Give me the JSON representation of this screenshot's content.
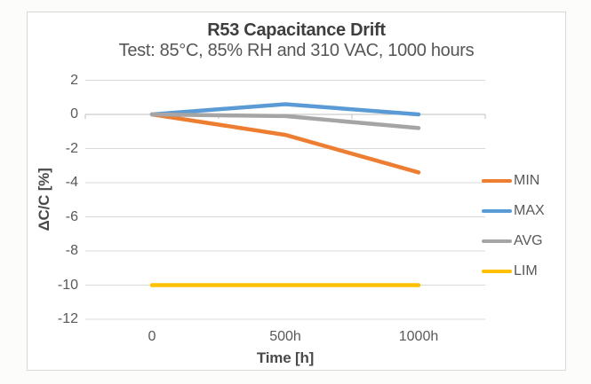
{
  "chart_data": {
    "type": "line",
    "title": "R53 Capacitance Drift",
    "subtitle": "Test: 85°C, 85% RH and 310 VAC, 1000 hours",
    "xlabel": "Time [h]",
    "ylabel": "ΔC/C [%]",
    "categories": [
      "0",
      "500h",
      "1000h"
    ],
    "series": [
      {
        "name": "MIN",
        "color": "#ED7D31",
        "values": [
          0,
          -1.2,
          -3.4
        ]
      },
      {
        "name": "MAX",
        "color": "#5B9BD5",
        "values": [
          0,
          0.6,
          0
        ]
      },
      {
        "name": "AVG",
        "color": "#A5A5A5",
        "values": [
          0,
          -0.1,
          -0.8
        ]
      },
      {
        "name": "LIM",
        "color": "#FFC000",
        "values": [
          -10,
          -10,
          -10
        ]
      }
    ],
    "ylim": [
      -12,
      2
    ],
    "yticks": [
      2,
      0,
      -2,
      -4,
      -6,
      -8,
      -10,
      -12
    ],
    "grid": true,
    "legend_position": "right",
    "gridline_color": "#d9d9d9",
    "axis_line_color": "#bfbfbf"
  }
}
